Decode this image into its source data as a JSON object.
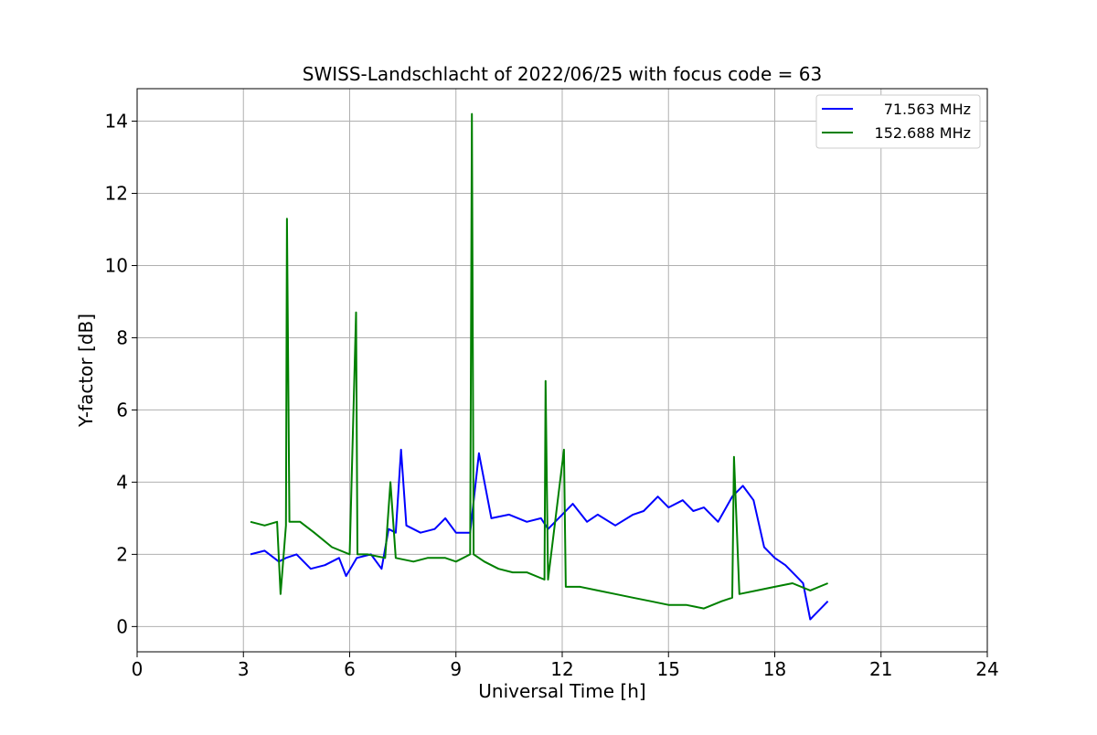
{
  "chart_data": {
    "type": "line",
    "title": "SWISS-Landschlacht of 2022/06/25 with focus code = 63",
    "xlabel": "Universal Time [h]",
    "ylabel": "Y-factor [dB]",
    "xlim": [
      0,
      24
    ],
    "ylim": [
      -0.7,
      14.9
    ],
    "xticks": [
      0,
      3,
      6,
      9,
      12,
      15,
      18,
      21,
      24
    ],
    "yticks": [
      0,
      2,
      4,
      6,
      8,
      10,
      12,
      14
    ],
    "grid": true,
    "legend_position": "top-right",
    "series": [
      {
        "name": "71.563 MHz",
        "color": "#0000ff",
        "x": [
          3.2,
          3.6,
          4.0,
          4.2,
          4.5,
          4.9,
          5.3,
          5.7,
          5.9,
          6.2,
          6.6,
          6.9,
          7.1,
          7.3,
          7.45,
          7.6,
          8.0,
          8.4,
          8.7,
          9.0,
          9.4,
          9.65,
          10.0,
          10.5,
          11.0,
          11.4,
          11.6,
          12.0,
          12.3,
          12.7,
          13.0,
          13.5,
          14.0,
          14.3,
          14.7,
          15.0,
          15.4,
          15.7,
          16.0,
          16.4,
          16.8,
          17.1,
          17.4,
          17.7,
          18.0,
          18.3,
          18.6,
          18.8,
          19.0,
          19.2,
          19.5
        ],
        "y": [
          2.0,
          2.1,
          1.8,
          1.9,
          2.0,
          1.6,
          1.7,
          1.9,
          1.4,
          1.9,
          2.0,
          1.6,
          2.7,
          2.6,
          4.9,
          2.8,
          2.6,
          2.7,
          3.0,
          2.6,
          2.6,
          4.8,
          3.0,
          3.1,
          2.9,
          3.0,
          2.7,
          3.1,
          3.4,
          2.9,
          3.1,
          2.8,
          3.1,
          3.2,
          3.6,
          3.3,
          3.5,
          3.2,
          3.3,
          2.9,
          3.6,
          3.9,
          3.5,
          2.2,
          1.9,
          1.7,
          1.4,
          1.2,
          0.2,
          0.4,
          0.7
        ]
      },
      {
        "name": "152.688 MHz",
        "color": "#008000",
        "x": [
          3.2,
          3.6,
          3.95,
          4.05,
          4.2,
          4.23,
          4.3,
          4.6,
          5.0,
          5.5,
          6.0,
          6.18,
          6.22,
          6.5,
          7.0,
          7.15,
          7.3,
          7.8,
          8.2,
          8.7,
          9.0,
          9.4,
          9.45,
          9.5,
          9.8,
          10.2,
          10.6,
          11.0,
          11.5,
          11.53,
          11.6,
          12.05,
          12.1,
          12.5,
          13.0,
          13.5,
          14.0,
          14.5,
          15.0,
          15.5,
          16.0,
          16.5,
          16.8,
          16.85,
          17.0,
          17.5,
          18.0,
          18.5,
          19.0,
          19.5
        ],
        "y": [
          2.9,
          2.8,
          2.9,
          0.9,
          2.8,
          11.3,
          2.9,
          2.9,
          2.6,
          2.2,
          2.0,
          8.7,
          2.0,
          2.0,
          1.9,
          4.0,
          1.9,
          1.8,
          1.9,
          1.9,
          1.8,
          2.0,
          14.2,
          2.0,
          1.8,
          1.6,
          1.5,
          1.5,
          1.3,
          6.8,
          1.3,
          4.9,
          1.1,
          1.1,
          1.0,
          0.9,
          0.8,
          0.7,
          0.6,
          0.6,
          0.5,
          0.7,
          0.8,
          4.7,
          0.9,
          1.0,
          1.1,
          1.2,
          1.0,
          1.2
        ]
      }
    ]
  }
}
